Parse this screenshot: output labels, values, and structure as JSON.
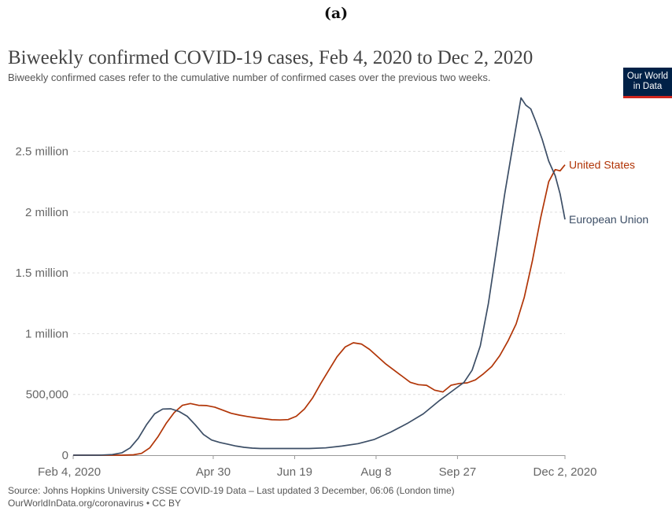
{
  "panel_label": "(a)",
  "logo": {
    "line1": "Our World",
    "line2": "in Data"
  },
  "footer": {
    "source": "Source: Johns Hopkins University CSSE COVID-19 Data – Last updated 3 December, 06:06 (London time)",
    "credit": "OurWorldInData.org/coronavirus • CC BY"
  },
  "colors": {
    "United States": "#b13507",
    "European Union": "#3c4e66",
    "grid": "#dddddd",
    "axis_text": "#666666"
  },
  "chart_data": {
    "type": "line",
    "title": "Biweekly confirmed COVID-19 cases, Feb 4, 2020 to Dec 2, 2020",
    "subtitle": "Biweekly confirmed cases refer to the cumulative number of confirmed cases over the previous two weeks.",
    "x_range": [
      "2020-02-04",
      "2020-12-02"
    ],
    "ylim": [
      0,
      2950000
    ],
    "grid": true,
    "x_ticks": [
      {
        "date": "2020-02-04",
        "label": "Feb 4, 2020"
      },
      {
        "date": "2020-04-30",
        "label": "Apr 30"
      },
      {
        "date": "2020-06-19",
        "label": "Jun 19"
      },
      {
        "date": "2020-08-08",
        "label": "Aug 8"
      },
      {
        "date": "2020-09-27",
        "label": "Sep 27"
      },
      {
        "date": "2020-12-02",
        "label": "Dec 2, 2020"
      }
    ],
    "y_ticks": [
      {
        "value": 0,
        "label": "0"
      },
      {
        "value": 500000,
        "label": "500,000"
      },
      {
        "value": 1000000,
        "label": "1 million"
      },
      {
        "value": 1500000,
        "label": "1.5 million"
      },
      {
        "value": 2000000,
        "label": "2 million"
      },
      {
        "value": 2500000,
        "label": "2.5 million"
      }
    ],
    "series": [
      {
        "name": "United States",
        "points": [
          [
            "2020-02-04",
            0
          ],
          [
            "2020-02-20",
            0
          ],
          [
            "2020-03-05",
            0
          ],
          [
            "2020-03-12",
            3000
          ],
          [
            "2020-03-17",
            15000
          ],
          [
            "2020-03-22",
            60000
          ],
          [
            "2020-03-27",
            150000
          ],
          [
            "2020-04-01",
            260000
          ],
          [
            "2020-04-06",
            350000
          ],
          [
            "2020-04-11",
            410000
          ],
          [
            "2020-04-16",
            425000
          ],
          [
            "2020-04-21",
            410000
          ],
          [
            "2020-04-26",
            408000
          ],
          [
            "2020-05-01",
            395000
          ],
          [
            "2020-05-06",
            370000
          ],
          [
            "2020-05-11",
            345000
          ],
          [
            "2020-05-16",
            330000
          ],
          [
            "2020-05-21",
            318000
          ],
          [
            "2020-05-26",
            308000
          ],
          [
            "2020-05-31",
            300000
          ],
          [
            "2020-06-05",
            292000
          ],
          [
            "2020-06-10",
            290000
          ],
          [
            "2020-06-15",
            293000
          ],
          [
            "2020-06-20",
            320000
          ],
          [
            "2020-06-25",
            380000
          ],
          [
            "2020-06-30",
            470000
          ],
          [
            "2020-07-05",
            590000
          ],
          [
            "2020-07-10",
            700000
          ],
          [
            "2020-07-15",
            810000
          ],
          [
            "2020-07-20",
            890000
          ],
          [
            "2020-07-25",
            925000
          ],
          [
            "2020-07-30",
            915000
          ],
          [
            "2020-08-04",
            870000
          ],
          [
            "2020-08-09",
            810000
          ],
          [
            "2020-08-14",
            750000
          ],
          [
            "2020-08-19",
            700000
          ],
          [
            "2020-08-24",
            650000
          ],
          [
            "2020-08-29",
            600000
          ],
          [
            "2020-09-03",
            580000
          ],
          [
            "2020-09-08",
            575000
          ],
          [
            "2020-09-13",
            535000
          ],
          [
            "2020-09-18",
            520000
          ],
          [
            "2020-09-23",
            575000
          ],
          [
            "2020-09-28",
            590000
          ],
          [
            "2020-10-03",
            595000
          ],
          [
            "2020-10-08",
            620000
          ],
          [
            "2020-10-13",
            670000
          ],
          [
            "2020-10-18",
            730000
          ],
          [
            "2020-10-23",
            820000
          ],
          [
            "2020-10-28",
            940000
          ],
          [
            "2020-11-02",
            1080000
          ],
          [
            "2020-11-07",
            1300000
          ],
          [
            "2020-11-12",
            1600000
          ],
          [
            "2020-11-17",
            1950000
          ],
          [
            "2020-11-22",
            2250000
          ],
          [
            "2020-11-26",
            2350000
          ],
          [
            "2020-11-29",
            2340000
          ],
          [
            "2020-12-02",
            2390000
          ]
        ]
      },
      {
        "name": "European Union",
        "points": [
          [
            "2020-02-04",
            0
          ],
          [
            "2020-02-20",
            0
          ],
          [
            "2020-02-28",
            5000
          ],
          [
            "2020-03-05",
            20000
          ],
          [
            "2020-03-10",
            60000
          ],
          [
            "2020-03-15",
            140000
          ],
          [
            "2020-03-20",
            250000
          ],
          [
            "2020-03-25",
            340000
          ],
          [
            "2020-03-30",
            380000
          ],
          [
            "2020-04-04",
            382000
          ],
          [
            "2020-04-09",
            360000
          ],
          [
            "2020-04-14",
            320000
          ],
          [
            "2020-04-19",
            250000
          ],
          [
            "2020-04-24",
            170000
          ],
          [
            "2020-04-29",
            125000
          ],
          [
            "2020-05-04",
            105000
          ],
          [
            "2020-05-09",
            90000
          ],
          [
            "2020-05-14",
            75000
          ],
          [
            "2020-05-19",
            65000
          ],
          [
            "2020-05-24",
            58000
          ],
          [
            "2020-05-29",
            55000
          ],
          [
            "2020-06-08",
            55000
          ],
          [
            "2020-06-18",
            55000
          ],
          [
            "2020-06-28",
            55000
          ],
          [
            "2020-07-08",
            60000
          ],
          [
            "2020-07-18",
            75000
          ],
          [
            "2020-07-28",
            95000
          ],
          [
            "2020-08-07",
            130000
          ],
          [
            "2020-08-17",
            190000
          ],
          [
            "2020-08-27",
            260000
          ],
          [
            "2020-09-06",
            340000
          ],
          [
            "2020-09-16",
            450000
          ],
          [
            "2020-09-26",
            550000
          ],
          [
            "2020-10-01",
            600000
          ],
          [
            "2020-10-06",
            700000
          ],
          [
            "2020-10-11",
            900000
          ],
          [
            "2020-10-16",
            1250000
          ],
          [
            "2020-10-21",
            1700000
          ],
          [
            "2020-10-26",
            2150000
          ],
          [
            "2020-10-31",
            2550000
          ],
          [
            "2020-11-05",
            2940000
          ],
          [
            "2020-11-08",
            2880000
          ],
          [
            "2020-11-11",
            2850000
          ],
          [
            "2020-11-14",
            2750000
          ],
          [
            "2020-11-18",
            2600000
          ],
          [
            "2020-11-22",
            2420000
          ],
          [
            "2020-11-26",
            2300000
          ],
          [
            "2020-11-29",
            2150000
          ],
          [
            "2020-12-02",
            1940000
          ]
        ]
      }
    ]
  }
}
